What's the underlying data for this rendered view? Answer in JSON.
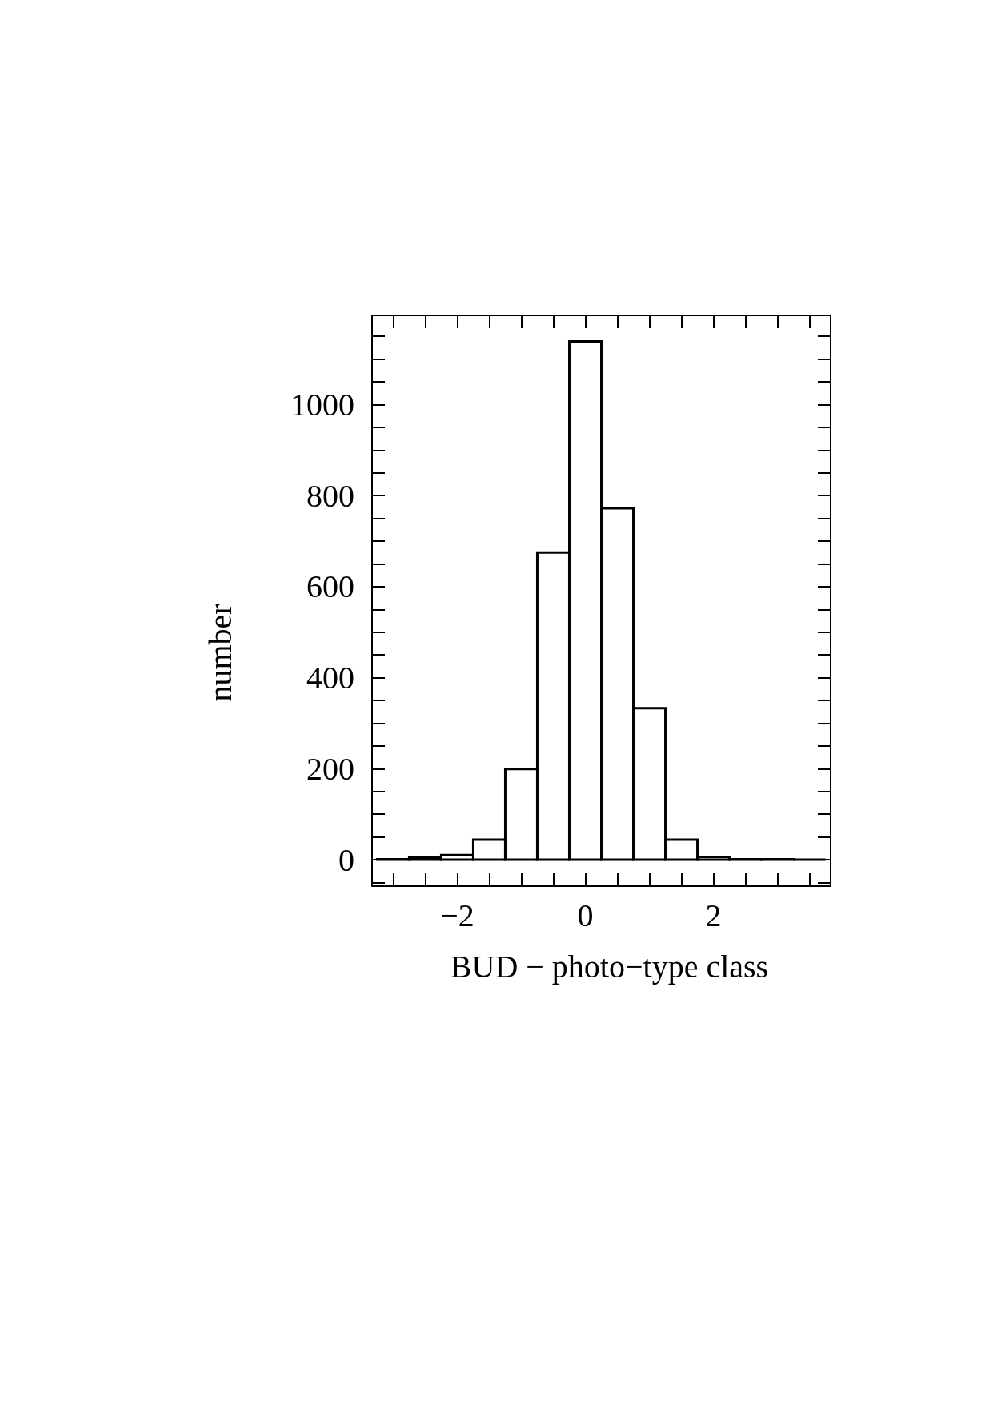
{
  "chart_data": {
    "type": "histogram",
    "xlabel": "BUD − photo−type class",
    "ylabel": "number",
    "bins": [
      -3.25,
      -2.75,
      -2.25,
      -1.75,
      -1.25,
      -0.75,
      -0.25,
      0.25,
      0.75,
      1.25,
      1.75,
      2.25,
      2.75,
      3.25,
      3.75
    ],
    "values": [
      1,
      5,
      10,
      44,
      199,
      675,
      1139,
      772,
      333,
      44,
      6,
      1,
      1,
      0
    ],
    "color": "#000000",
    "xlim": [
      -3.33,
      3.83
    ],
    "xticks": [
      {
        "value": -3,
        "label": null
      },
      {
        "value": -2.5,
        "label": null
      },
      {
        "value": -2,
        "label": "−2"
      },
      {
        "value": -1.5,
        "label": null
      },
      {
        "value": -1,
        "label": null
      },
      {
        "value": -0.5,
        "label": null
      },
      0,
      {
        "value": 0.5,
        "label": null
      },
      {
        "value": 1,
        "label": null
      },
      {
        "value": 1.5,
        "label": null
      },
      2,
      {
        "value": 2.5,
        "label": null
      },
      {
        "value": 3,
        "label": null
      },
      {
        "value": 3.5,
        "label": null
      }
    ],
    "ylim": [
      -58,
      1196
    ],
    "yticks": [
      {
        "value": -50,
        "label": null
      },
      0,
      {
        "value": 50,
        "label": null
      },
      {
        "value": 100,
        "label": null
      },
      {
        "value": 150,
        "label": null
      },
      200,
      {
        "value": 250,
        "label": null
      },
      {
        "value": 300,
        "label": null
      },
      {
        "value": 350,
        "label": null
      },
      400,
      {
        "value": 450,
        "label": null
      },
      {
        "value": 500,
        "label": null
      },
      {
        "value": 550,
        "label": null
      },
      600,
      {
        "value": 650,
        "label": null
      },
      {
        "value": 700,
        "label": null
      },
      {
        "value": 750,
        "label": null
      },
      800,
      {
        "value": 850,
        "label": null
      },
      {
        "value": 900,
        "label": null
      },
      {
        "value": 950,
        "label": null
      },
      1000,
      {
        "value": 1050,
        "label": null
      },
      {
        "value": 1100,
        "label": null
      },
      {
        "value": 1150,
        "label": null
      }
    ],
    "grid": false
  }
}
